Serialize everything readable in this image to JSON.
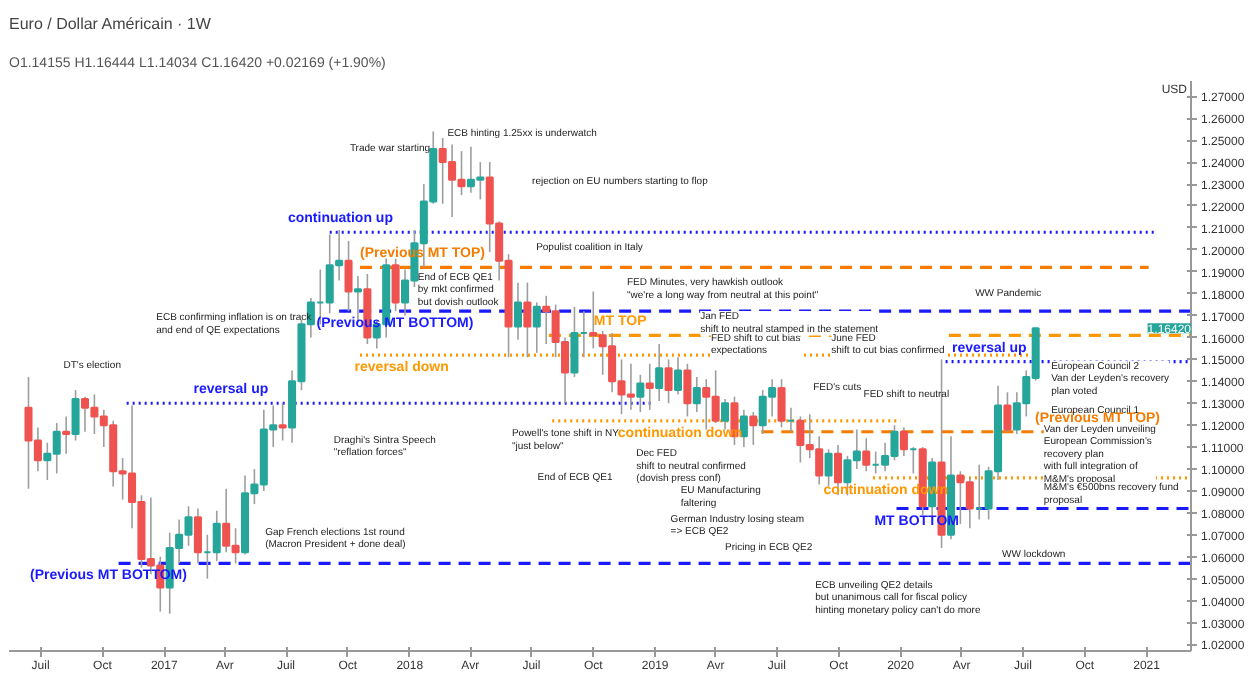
{
  "chart_data": {
    "type": "candlestick",
    "title": "Euro / Dollar Américain · 1W",
    "subtitle": "O1.14155 H1.16444 L1.14034 C1.16420 +0.02169 (+1.90%)",
    "ylabel": "USD",
    "x": [
      "2016-06-13",
      "2016-06-27",
      "2016-07-11",
      "2016-07-25",
      "2016-08-08",
      "2016-08-22",
      "2016-09-05",
      "2016-09-19",
      "2016-10-03",
      "2016-10-17",
      "2016-10-31",
      "2016-11-14",
      "2016-11-28",
      "2016-12-12",
      "2016-12-26",
      "2017-01-09",
      "2017-01-23",
      "2017-02-06",
      "2017-02-20",
      "2017-03-06",
      "2017-03-20",
      "2017-04-03",
      "2017-04-17",
      "2017-05-01",
      "2017-05-15",
      "2017-05-29",
      "2017-06-12",
      "2017-06-26",
      "2017-07-10",
      "2017-07-24",
      "2017-08-07",
      "2017-08-21",
      "2017-09-04",
      "2017-09-18",
      "2017-10-02",
      "2017-10-16",
      "2017-10-30",
      "2017-11-13",
      "2017-11-27",
      "2017-12-11",
      "2017-12-25",
      "2018-01-08",
      "2018-01-22",
      "2018-02-05",
      "2018-02-19",
      "2018-03-05",
      "2018-03-19",
      "2018-04-02",
      "2018-04-16",
      "2018-04-30",
      "2018-05-14",
      "2018-05-28",
      "2018-06-11",
      "2018-06-25",
      "2018-07-09",
      "2018-07-23",
      "2018-08-06",
      "2018-08-20",
      "2018-09-03",
      "2018-09-17",
      "2018-10-01",
      "2018-10-15",
      "2018-10-29",
      "2018-11-12",
      "2018-11-26",
      "2018-12-10",
      "2018-12-24",
      "2019-01-07",
      "2019-01-21",
      "2019-02-04",
      "2019-02-18",
      "2019-03-04",
      "2019-03-18",
      "2019-04-01",
      "2019-04-15",
      "2019-04-29",
      "2019-05-13",
      "2019-05-27",
      "2019-06-10",
      "2019-06-24",
      "2019-07-08",
      "2019-07-22",
      "2019-08-05",
      "2019-08-19",
      "2019-09-02",
      "2019-09-16",
      "2019-09-30",
      "2019-10-14",
      "2019-10-28",
      "2019-11-11",
      "2019-11-25",
      "2019-12-09",
      "2019-12-23",
      "2020-01-06",
      "2020-01-20",
      "2020-02-03",
      "2020-02-17",
      "2020-03-02",
      "2020-03-16",
      "2020-03-30",
      "2020-04-13",
      "2020-04-27",
      "2020-05-11",
      "2020-05-25",
      "2020-06-08",
      "2020-06-22",
      "2020-07-06",
      "2020-07-20"
    ],
    "ohlc": [
      [
        1.128,
        1.142,
        1.091,
        1.113
      ],
      [
        1.113,
        1.119,
        1.099,
        1.104
      ],
      [
        1.104,
        1.112,
        1.095,
        1.107
      ],
      [
        1.107,
        1.121,
        1.098,
        1.117
      ],
      [
        1.117,
        1.124,
        1.107,
        1.116
      ],
      [
        1.116,
        1.136,
        1.113,
        1.132
      ],
      [
        1.132,
        1.133,
        1.117,
        1.128
      ],
      [
        1.128,
        1.134,
        1.116,
        1.124
      ],
      [
        1.124,
        1.127,
        1.11,
        1.12
      ],
      [
        1.12,
        1.122,
        1.092,
        1.099
      ],
      [
        1.099,
        1.105,
        1.086,
        1.098
      ],
      [
        1.098,
        1.129,
        1.073,
        1.085
      ],
      [
        1.085,
        1.088,
        1.055,
        1.059
      ],
      [
        1.059,
        1.087,
        1.052,
        1.056
      ],
      [
        1.056,
        1.06,
        1.035,
        1.046
      ],
      [
        1.046,
        1.071,
        1.034,
        1.064
      ],
      [
        1.064,
        1.077,
        1.057,
        1.07
      ],
      [
        1.07,
        1.083,
        1.065,
        1.078
      ],
      [
        1.078,
        1.082,
        1.057,
        1.062
      ],
      [
        1.062,
        1.07,
        1.05,
        1.062
      ],
      [
        1.062,
        1.081,
        1.058,
        1.075
      ],
      [
        1.075,
        1.091,
        1.062,
        1.065
      ],
      [
        1.065,
        1.073,
        1.057,
        1.062
      ],
      [
        1.062,
        1.097,
        1.061,
        1.089
      ],
      [
        1.089,
        1.1,
        1.084,
        1.093
      ],
      [
        1.093,
        1.127,
        1.09,
        1.118
      ],
      [
        1.118,
        1.129,
        1.11,
        1.12
      ],
      [
        1.12,
        1.13,
        1.113,
        1.119
      ],
      [
        1.119,
        1.145,
        1.112,
        1.14
      ],
      [
        1.14,
        1.168,
        1.136,
        1.166
      ],
      [
        1.166,
        1.178,
        1.16,
        1.176
      ],
      [
        1.176,
        1.191,
        1.166,
        1.176
      ],
      [
        1.176,
        1.207,
        1.171,
        1.193
      ],
      [
        1.193,
        1.209,
        1.186,
        1.195
      ],
      [
        1.195,
        1.204,
        1.172,
        1.181
      ],
      [
        1.181,
        1.188,
        1.167,
        1.182
      ],
      [
        1.182,
        1.189,
        1.157,
        1.16
      ],
      [
        1.16,
        1.168,
        1.155,
        1.166
      ],
      [
        1.166,
        1.196,
        1.16,
        1.193
      ],
      [
        1.193,
        1.196,
        1.172,
        1.176
      ],
      [
        1.176,
        1.191,
        1.17,
        1.186
      ],
      [
        1.186,
        1.209,
        1.183,
        1.203
      ],
      [
        1.203,
        1.23,
        1.192,
        1.222
      ],
      [
        1.222,
        1.254,
        1.221,
        1.246
      ],
      [
        1.246,
        1.251,
        1.221,
        1.24
      ],
      [
        1.24,
        1.248,
        1.215,
        1.232
      ],
      [
        1.232,
        1.245,
        1.225,
        1.229
      ],
      [
        1.229,
        1.247,
        1.226,
        1.232
      ],
      [
        1.232,
        1.24,
        1.223,
        1.233
      ],
      [
        1.233,
        1.24,
        1.199,
        1.212
      ],
      [
        1.212,
        1.213,
        1.186,
        1.195
      ],
      [
        1.195,
        1.198,
        1.151,
        1.165
      ],
      [
        1.165,
        1.185,
        1.159,
        1.176
      ],
      [
        1.176,
        1.185,
        1.151,
        1.165
      ],
      [
        1.165,
        1.176,
        1.153,
        1.174
      ],
      [
        1.174,
        1.179,
        1.157,
        1.172
      ],
      [
        1.172,
        1.175,
        1.151,
        1.158
      ],
      [
        1.158,
        1.16,
        1.13,
        1.144
      ],
      [
        1.144,
        1.174,
        1.142,
        1.162
      ],
      [
        1.162,
        1.172,
        1.151,
        1.162
      ],
      [
        1.162,
        1.181,
        1.155,
        1.161
      ],
      [
        1.161,
        1.163,
        1.143,
        1.156
      ],
      [
        1.156,
        1.162,
        1.135,
        1.14
      ],
      [
        1.14,
        1.15,
        1.125,
        1.134
      ],
      [
        1.134,
        1.148,
        1.127,
        1.133
      ],
      [
        1.133,
        1.143,
        1.126,
        1.139
      ],
      [
        1.139,
        1.148,
        1.127,
        1.137
      ],
      [
        1.137,
        1.157,
        1.131,
        1.146
      ],
      [
        1.146,
        1.15,
        1.13,
        1.136
      ],
      [
        1.136,
        1.151,
        1.134,
        1.145
      ],
      [
        1.145,
        1.148,
        1.124,
        1.13
      ],
      [
        1.13,
        1.142,
        1.126,
        1.137
      ],
      [
        1.137,
        1.141,
        1.118,
        1.133
      ],
      [
        1.133,
        1.145,
        1.121,
        1.122
      ],
      [
        1.122,
        1.132,
        1.118,
        1.13
      ],
      [
        1.13,
        1.133,
        1.111,
        1.115
      ],
      [
        1.115,
        1.127,
        1.11,
        1.124
      ],
      [
        1.124,
        1.126,
        1.111,
        1.12
      ],
      [
        1.12,
        1.136,
        1.116,
        1.133
      ],
      [
        1.133,
        1.141,
        1.124,
        1.137
      ],
      [
        1.137,
        1.141,
        1.119,
        1.122
      ],
      [
        1.122,
        1.128,
        1.117,
        1.122
      ],
      [
        1.122,
        1.124,
        1.103,
        1.111
      ],
      [
        1.111,
        1.125,
        1.105,
        1.109
      ],
      [
        1.109,
        1.115,
        1.093,
        1.097
      ],
      [
        1.097,
        1.109,
        1.092,
        1.107
      ],
      [
        1.107,
        1.111,
        1.088,
        1.094
      ],
      [
        1.094,
        1.106,
        1.088,
        1.104
      ],
      [
        1.104,
        1.118,
        1.1,
        1.108
      ],
      [
        1.108,
        1.114,
        1.099,
        1.102
      ],
      [
        1.102,
        1.108,
        1.098,
        1.102
      ],
      [
        1.102,
        1.112,
        1.099,
        1.106
      ],
      [
        1.106,
        1.12,
        1.104,
        1.117
      ],
      [
        1.117,
        1.119,
        1.106,
        1.109
      ],
      [
        1.109,
        1.11,
        1.098,
        1.109
      ],
      [
        1.109,
        1.11,
        1.079,
        1.083
      ],
      [
        1.083,
        1.105,
        1.078,
        1.103
      ],
      [
        1.103,
        1.15,
        1.064,
        1.07
      ],
      [
        1.07,
        1.115,
        1.068,
        1.097
      ],
      [
        1.097,
        1.099,
        1.075,
        1.094
      ],
      [
        1.094,
        1.096,
        1.073,
        1.082
      ],
      [
        1.082,
        1.102,
        1.077,
        1.082
      ],
      [
        1.082,
        1.101,
        1.077,
        1.099
      ],
      [
        1.099,
        1.138,
        1.095,
        1.129
      ],
      [
        1.129,
        1.135,
        1.117,
        1.118
      ],
      [
        1.118,
        1.135,
        1.116,
        1.13
      ],
      [
        1.13,
        1.145,
        1.124,
        1.142
      ],
      [
        1.14155,
        1.16444,
        1.14034,
        1.1642
      ]
    ],
    "xlim": [
      "2016-05-15",
      "2021-03-08"
    ],
    "xticks": [
      {
        "value": "2016-07-01",
        "label": "Juil"
      },
      {
        "value": "2016-10-01",
        "label": "Oct"
      },
      {
        "value": "2017-01-01",
        "label": "2017"
      },
      {
        "value": "2017-04-01",
        "label": "Avr"
      },
      {
        "value": "2017-07-01",
        "label": "Juil"
      },
      {
        "value": "2017-10-01",
        "label": "Oct"
      },
      {
        "value": "2018-01-01",
        "label": "2018"
      },
      {
        "value": "2018-04-01",
        "label": "Avr"
      },
      {
        "value": "2018-07-01",
        "label": "Juil"
      },
      {
        "value": "2018-10-01",
        "label": "Oct"
      },
      {
        "value": "2019-01-01",
        "label": "2019"
      },
      {
        "value": "2019-04-01",
        "label": "Avr"
      },
      {
        "value": "2019-07-01",
        "label": "Juil"
      },
      {
        "value": "2019-10-01",
        "label": "Oct"
      },
      {
        "value": "2020-01-01",
        "label": "2020"
      },
      {
        "value": "2020-04-01",
        "label": "Avr"
      },
      {
        "value": "2020-07-01",
        "label": "Juil"
      },
      {
        "value": "2020-10-01",
        "label": "Oct"
      },
      {
        "value": "2021-01-01",
        "label": "2021"
      }
    ],
    "ylim": [
      1.017,
      1.277
    ],
    "yticks": [
      {
        "value": 1.02,
        "label": "1.02000"
      },
      {
        "value": 1.03,
        "label": "1.03000"
      },
      {
        "value": 1.04,
        "label": "1.04000"
      },
      {
        "value": 1.05,
        "label": "1.05000"
      },
      {
        "value": 1.06,
        "label": "1.06000"
      },
      {
        "value": 1.07,
        "label": "1.07000"
      },
      {
        "value": 1.08,
        "label": "1.08000"
      },
      {
        "value": 1.09,
        "label": "1.09000"
      },
      {
        "value": 1.1,
        "label": "1.10000"
      },
      {
        "value": 1.11,
        "label": "1.11000"
      },
      {
        "value": 1.12,
        "label": "1.12000"
      },
      {
        "value": 1.13,
        "label": "1.13000"
      },
      {
        "value": 1.14,
        "label": "1.14000"
      },
      {
        "value": 1.15,
        "label": "1.15000"
      },
      {
        "value": 1.16,
        "label": "1.16000"
      },
      {
        "value": 1.17,
        "label": "1.17000"
      },
      {
        "value": 1.18,
        "label": "1.18000"
      },
      {
        "value": 1.19,
        "label": "1.19000"
      },
      {
        "value": 1.2,
        "label": "1.20000"
      },
      {
        "value": 1.21,
        "label": "1.21000"
      },
      {
        "value": 1.22,
        "label": "1.22000"
      },
      {
        "value": 1.23,
        "label": "1.23000"
      },
      {
        "value": 1.24,
        "label": "1.24000"
      },
      {
        "value": 1.25,
        "label": "1.25000"
      },
      {
        "value": 1.26,
        "label": "1.26000"
      },
      {
        "value": 1.27,
        "label": "1.27000"
      }
    ],
    "ref_lines": [
      {
        "axis": "y",
        "value": 1.208,
        "label": "continuation up",
        "color": "#1a1aff",
        "line_style": "dotted"
      },
      {
        "axis": "y",
        "value": 1.192,
        "label": "(Previous MT TOP)",
        "color": "#f57c00",
        "line_style": "dashed"
      },
      {
        "axis": "y",
        "value": 1.172,
        "label": "(Previous MT BOTTOM)",
        "color": "#1a1aff",
        "line_style": "dashed"
      },
      {
        "axis": "y",
        "value": 1.161,
        "label": "MT TOP",
        "color": "#ff9800",
        "line_style": "dashed"
      },
      {
        "axis": "y",
        "value": 1.152,
        "label": "reversal down",
        "color": "#ff9800",
        "line_style": "dotted"
      },
      {
        "axis": "y",
        "value": 1.149,
        "label": "reversal up",
        "color": "#1a1aff",
        "line_style": "dotted"
      },
      {
        "axis": "y",
        "value": 1.13,
        "label": "reversal up",
        "color": "#1a1aff",
        "line_style": "dotted"
      },
      {
        "axis": "y",
        "value": 1.122,
        "label": "continuation down",
        "color": "#ff9800",
        "line_style": "dotted"
      },
      {
        "axis": "y",
        "value": 1.117,
        "label": "(Previous MT TOP)",
        "color": "#f57c00",
        "line_style": "dashed"
      },
      {
        "axis": "y",
        "value": 1.096,
        "label": "continuation down",
        "color": "#ff9800",
        "line_style": "dotted"
      },
      {
        "axis": "y",
        "value": 1.082,
        "label": "MT BOTTOM",
        "color": "#1a1aff",
        "line_style": "dashed"
      },
      {
        "axis": "y",
        "value": 1.057,
        "label": "(Previous MT BOTTOM)",
        "color": "#1a1aff",
        "line_style": "dashed"
      }
    ],
    "annotations": [
      "Trade war starting",
      "ECB hinting 1.25xx is underwatch",
      "rejection on EU numbers starting to flop",
      "Populist coalition in Italy",
      "End of ECB QE1\nby mkt confirmed\nbut dovish outlook",
      "FED Minutes, very hawkish outlook\n\"we're a long way from neutral at this point\"",
      "Jan FED\nshift to neutral stamped in the statement",
      "FED shift to cut bias\nexpectations",
      "June FED\nshift to cut bias confirmed",
      "WW Pandemic",
      "DT's election",
      "ECB confirming inflation is on track\nand end of QE expectations",
      "Draghi's Sintra Speech\n\"reflation forces\"",
      "Gap French elections 1st round\n(Macron President + done deal)",
      "Powell's tone shift in NY\n\"just below\"",
      "End of ECB QE1",
      "Dec FED\nshift to neutral confirmed\n(dovish press conf)",
      "EU Manufacturing\nfaltering",
      "German Industry losing steam\n=> ECB QE2",
      "Pricing in ECB QE2",
      "FED's cuts",
      "FED shift to neutral",
      "ECB unveiling QE2 details\nbut unanimous call for fiscal policy\nhinting monetary policy can't do more",
      "WW lockdown",
      "European Council 2\nVan der Leyden's recovery\nplan voted",
      "European Council 1",
      "Van der Leyden unveiling\nEuropean Commission's recovery plan\nwith full integration of M&M's proposal",
      "M&M's €500bns recovery fund proposal",
      "1.16420"
    ]
  }
}
